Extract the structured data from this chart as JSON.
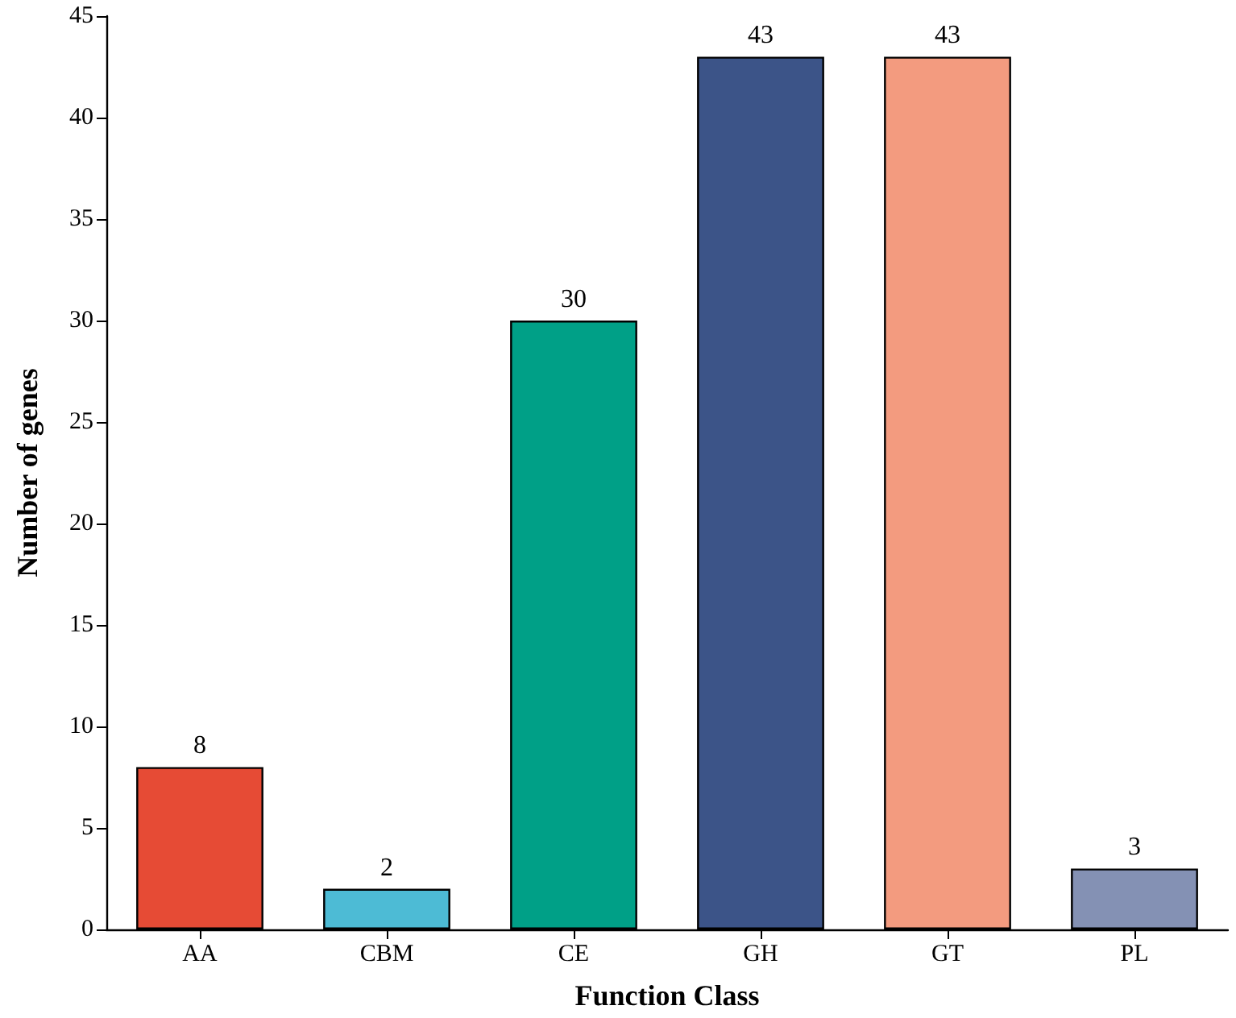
{
  "chart_data": {
    "type": "bar",
    "xlabel": "Function Class",
    "ylabel": "Number of genes",
    "categories": [
      "AA",
      "CBM",
      "CE",
      "GH",
      "GT",
      "PL"
    ],
    "values": [
      8,
      2,
      30,
      43,
      43,
      3
    ],
    "colors": [
      "#e64b35",
      "#4dbbd5",
      "#00a087",
      "#3c5488",
      "#f39b7f",
      "#8491b4"
    ],
    "ylim": [
      0,
      45
    ],
    "yticks": [
      0,
      5,
      10,
      15,
      20,
      25,
      30,
      35,
      40,
      45
    ],
    "grid": false,
    "data_labels": true
  }
}
